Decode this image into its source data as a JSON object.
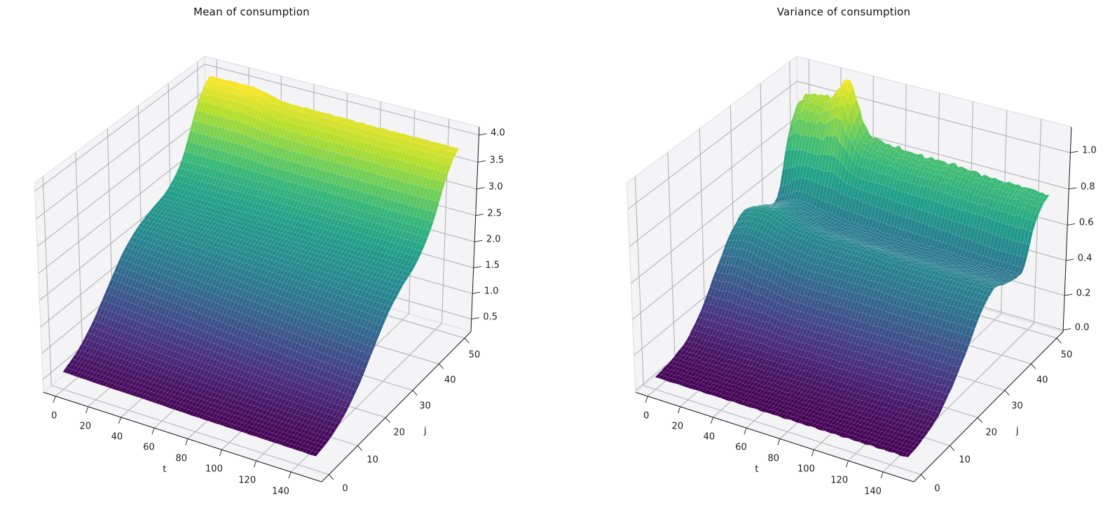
{
  "figure": {
    "background": "#ffffff"
  },
  "chart_data": [
    {
      "type": "surface",
      "title": "Mean of consumption",
      "xlabel": "t",
      "ylabel": "j",
      "colormap": "viridis",
      "view": {
        "azim": -60,
        "elev": 30,
        "projection": "perspective"
      },
      "xlim": [
        -7.5,
        157.5
      ],
      "ylim": [
        -2.5,
        52.5
      ],
      "zlim": [
        0.25,
        4.15
      ],
      "x_ticks": {
        "values": [
          0,
          20,
          40,
          60,
          80,
          100,
          120,
          140
        ],
        "labels": [
          "0",
          "20",
          "40",
          "60",
          "80",
          "100",
          "120",
          "140"
        ]
      },
      "y_ticks": {
        "values": [
          0,
          10,
          20,
          30,
          40,
          50
        ],
        "labels": [
          "0",
          "10",
          "20",
          "30",
          "40",
          "50"
        ]
      },
      "z_ticks": {
        "values": [
          0.5,
          1.0,
          1.5,
          2.0,
          2.5,
          3.0,
          3.5,
          4.0
        ],
        "labels": [
          "0.5",
          "1.0",
          "1.5",
          "2.0",
          "2.5",
          "3.0",
          "3.5",
          "4.0"
        ]
      },
      "grid_t": [
        0,
        25,
        50,
        75,
        100,
        125,
        150
      ],
      "grid_j": [
        0,
        5,
        10,
        15,
        20,
        25,
        30,
        35,
        40,
        42,
        44,
        46,
        48,
        50
      ],
      "z": [
        [
          0.59,
          0.57,
          0.56,
          0.54,
          0.53,
          0.52,
          0.51
        ],
        [
          0.77,
          0.73,
          0.69,
          0.66,
          0.64,
          0.61,
          0.59
        ],
        [
          1.08,
          1.02,
          0.96,
          0.9,
          0.85,
          0.81,
          0.77
        ],
        [
          1.5,
          1.43,
          1.36,
          1.28,
          1.21,
          1.14,
          1.08
        ],
        [
          1.9,
          1.84,
          1.78,
          1.71,
          1.64,
          1.57,
          1.5
        ],
        [
          2.15,
          2.12,
          2.08,
          2.04,
          2.0,
          1.95,
          1.9
        ],
        [
          2.29,
          2.28,
          2.26,
          2.24,
          2.22,
          2.19,
          2.16
        ],
        [
          2.41,
          2.4,
          2.4,
          2.39,
          2.38,
          2.37,
          2.35
        ],
        [
          2.75,
          2.75,
          2.75,
          2.74,
          2.74,
          2.73,
          2.73
        ],
        [
          3.03,
          3.03,
          2.99,
          2.98,
          2.98,
          2.97,
          2.97
        ],
        [
          3.35,
          3.35,
          3.28,
          3.27,
          3.27,
          3.26,
          3.26
        ],
        [
          3.63,
          3.63,
          3.53,
          3.52,
          3.52,
          3.52,
          3.51
        ],
        [
          3.82,
          3.83,
          3.7,
          3.7,
          3.69,
          3.69,
          3.69
        ],
        [
          3.94,
          3.95,
          3.81,
          3.81,
          3.8,
          3.8,
          3.8
        ]
      ],
      "noise": {
        "base": 0.004,
        "amp": 0.013,
        "onset": 3.1,
        "span": 0.7
      }
    },
    {
      "type": "surface",
      "title": "Variance of consumption",
      "xlabel": "t",
      "ylabel": "j",
      "colormap": "viridis",
      "view": {
        "azim": -60,
        "elev": 30,
        "projection": "perspective"
      },
      "xlim": [
        -7.5,
        157.5
      ],
      "ylim": [
        -2.5,
        52.5
      ],
      "zlim": [
        -0.01,
        1.14
      ],
      "x_ticks": {
        "values": [
          0,
          20,
          40,
          60,
          80,
          100,
          120,
          140
        ],
        "labels": [
          "0",
          "20",
          "40",
          "60",
          "80",
          "100",
          "120",
          "140"
        ]
      },
      "y_ticks": {
        "values": [
          0,
          10,
          20,
          30,
          40,
          50
        ],
        "labels": [
          "0",
          "10",
          "20",
          "30",
          "40",
          "50"
        ]
      },
      "z_ticks": {
        "values": [
          0.0,
          0.2,
          0.4,
          0.6,
          0.8,
          1.0
        ],
        "labels": [
          "0.0",
          "0.2",
          "0.4",
          "0.6",
          "0.8",
          "1.0"
        ]
      },
      "grid_t": [
        0,
        5,
        10,
        15,
        20,
        25,
        30,
        35,
        40,
        50,
        60,
        75,
        90,
        105,
        120,
        135,
        150
      ],
      "grid_j": [
        0,
        5,
        10,
        15,
        20,
        25,
        30,
        35,
        40,
        42,
        44,
        46,
        48,
        50
      ],
      "z": [
        [
          0.06,
          0.06,
          0.06,
          0.06,
          0.06,
          0.06,
          0.06,
          0.06,
          0.06,
          0.06,
          0.06,
          0.06,
          0.06,
          0.06,
          0.06,
          0.06,
          0.06
        ],
        [
          0.08,
          0.08,
          0.08,
          0.08,
          0.08,
          0.08,
          0.08,
          0.08,
          0.08,
          0.08,
          0.08,
          0.08,
          0.08,
          0.08,
          0.08,
          0.08,
          0.08
        ],
        [
          0.12,
          0.12,
          0.12,
          0.12,
          0.12,
          0.12,
          0.12,
          0.12,
          0.12,
          0.12,
          0.12,
          0.12,
          0.12,
          0.12,
          0.12,
          0.12,
          0.12
        ],
        [
          0.22,
          0.22,
          0.22,
          0.22,
          0.22,
          0.22,
          0.22,
          0.22,
          0.22,
          0.21,
          0.21,
          0.21,
          0.21,
          0.21,
          0.21,
          0.21,
          0.21
        ],
        [
          0.37,
          0.37,
          0.38,
          0.38,
          0.37,
          0.36,
          0.36,
          0.35,
          0.34,
          0.33,
          0.33,
          0.33,
          0.33,
          0.33,
          0.33,
          0.33,
          0.33
        ],
        [
          0.51,
          0.53,
          0.54,
          0.54,
          0.53,
          0.52,
          0.51,
          0.5,
          0.49,
          0.48,
          0.48,
          0.48,
          0.48,
          0.47,
          0.47,
          0.47,
          0.47
        ],
        [
          0.58,
          0.6,
          0.61,
          0.61,
          0.6,
          0.58,
          0.57,
          0.56,
          0.56,
          0.55,
          0.55,
          0.55,
          0.54,
          0.54,
          0.54,
          0.54,
          0.54
        ],
        [
          0.54,
          0.55,
          0.56,
          0.57,
          0.56,
          0.55,
          0.54,
          0.53,
          0.52,
          0.51,
          0.51,
          0.5,
          0.5,
          0.5,
          0.5,
          0.5,
          0.5
        ],
        [
          0.49,
          0.51,
          0.53,
          0.54,
          0.54,
          0.53,
          0.52,
          0.52,
          0.51,
          0.5,
          0.5,
          0.49,
          0.49,
          0.49,
          0.48,
          0.48,
          0.48
        ],
        [
          0.55,
          0.58,
          0.62,
          0.64,
          0.64,
          0.63,
          0.63,
          0.62,
          0.61,
          0.6,
          0.59,
          0.58,
          0.57,
          0.56,
          0.55,
          0.54,
          0.54
        ],
        [
          0.73,
          0.75,
          0.76,
          0.76,
          0.76,
          0.77,
          0.78,
          0.75,
          0.71,
          0.69,
          0.69,
          0.68,
          0.68,
          0.67,
          0.67,
          0.66,
          0.66
        ],
        [
          0.86,
          0.89,
          0.9,
          0.9,
          0.91,
          0.94,
          0.96,
          0.89,
          0.81,
          0.78,
          0.77,
          0.76,
          0.76,
          0.75,
          0.74,
          0.74,
          0.73
        ],
        [
          0.92,
          0.96,
          0.97,
          0.97,
          0.99,
          1.04,
          1.07,
          0.96,
          0.85,
          0.81,
          0.8,
          0.79,
          0.79,
          0.78,
          0.77,
          0.77,
          0.76
        ],
        [
          0.95,
          0.99,
          1.0,
          1.0,
          1.02,
          1.09,
          1.13,
          1.0,
          0.88,
          0.83,
          0.82,
          0.81,
          0.81,
          0.8,
          0.79,
          0.79,
          0.78
        ]
      ],
      "noise": {
        "base": 0.004,
        "amp": 0.02,
        "onset": 0.6,
        "span": 0.35
      }
    }
  ],
  "style": {
    "pane_color": "#f4f4f6",
    "pane_edge_color": "#dcdcdf",
    "grid_color": "#b3b3b7",
    "axis_color": "#1a1a1a",
    "tick_label_color": "#1c1c1c",
    "title_color": "#111111",
    "surface_edge_color": "rgba(255,255,255,0.19)",
    "viridis": [
      "#440154",
      "#482878",
      "#3e4989",
      "#31688e",
      "#26828e",
      "#1f9e89",
      "#35b779",
      "#6ece58",
      "#b5de2b",
      "#fde725"
    ]
  }
}
